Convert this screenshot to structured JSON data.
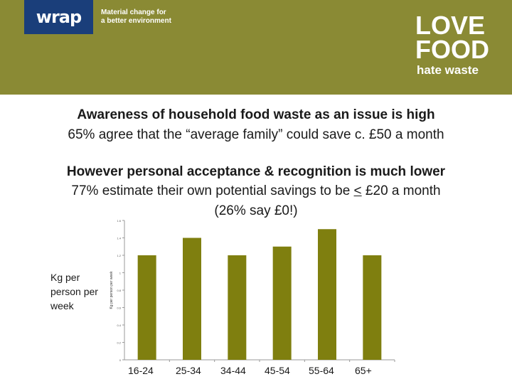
{
  "header": {
    "wrap_logo": "wrap",
    "tagline_line1": "Material change for",
    "tagline_line2": "a better environment",
    "love_logo": {
      "line1": "LOVE",
      "line2": "FOOD",
      "line3": "hate waste"
    },
    "background": "#8a8a34"
  },
  "heading": {
    "line1": "Awareness of household food waste as an issue is high",
    "line2": "65% agree that the “average family” could save c. £50 a month",
    "line3": "However personal acceptance & recognition is much lower",
    "line4_pre": "77% estimate their own potential savings to be ",
    "line4_u": "<",
    "line4_post": " £20 a month",
    "line5": "(26% say £0!)"
  },
  "chart_data": {
    "type": "bar",
    "categories": [
      "16-24",
      "25-34",
      "34-44",
      "45-54",
      "55-64",
      "65+"
    ],
    "values": [
      1.2,
      1.4,
      1.2,
      1.3,
      1.5,
      1.2
    ],
    "ylabel": "Kg per person per week",
    "ylim": [
      0,
      1.6
    ],
    "yticks": [
      "0",
      "0.2",
      "0.4",
      "0.6",
      "0.8",
      "1",
      "1.2",
      "1.4",
      "1.6"
    ],
    "bar_color": "#7f7f0f",
    "grid": false
  }
}
